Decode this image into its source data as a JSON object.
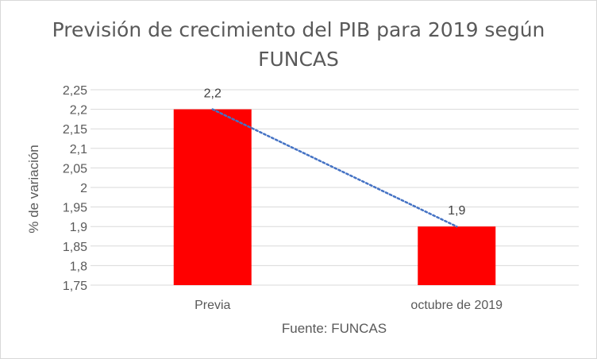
{
  "chart_data": {
    "type": "bar",
    "title_line1": "Previsión de crecimiento del PIB para 2019 según",
    "title_line2": "FUNCAS",
    "xlabel": "Fuente: FUNCAS",
    "ylabel": "% de variación",
    "categories": [
      "Previa",
      "octubre de 2019"
    ],
    "values": [
      2.2,
      1.9
    ],
    "data_labels": [
      "2,2",
      "1,9"
    ],
    "ylim": [
      1.75,
      2.25
    ],
    "yticks": [
      {
        "value": 2.25,
        "label": "2,25"
      },
      {
        "value": 2.2,
        "label": "2,2"
      },
      {
        "value": 2.15,
        "label": "2,15"
      },
      {
        "value": 2.1,
        "label": "2,1"
      },
      {
        "value": 2.05,
        "label": "2,05"
      },
      {
        "value": 2.0,
        "label": "2"
      },
      {
        "value": 1.95,
        "label": "1,95"
      },
      {
        "value": 1.9,
        "label": "1,9"
      },
      {
        "value": 1.85,
        "label": "1,85"
      },
      {
        "value": 1.8,
        "label": "1,8"
      },
      {
        "value": 1.75,
        "label": "1,75"
      }
    ],
    "grid": true,
    "legend": "none",
    "trendline": "linear dotted",
    "colors": {
      "bar": "#ff0000",
      "trendline": "#4472c4",
      "grid": "#d9d9d9"
    }
  }
}
